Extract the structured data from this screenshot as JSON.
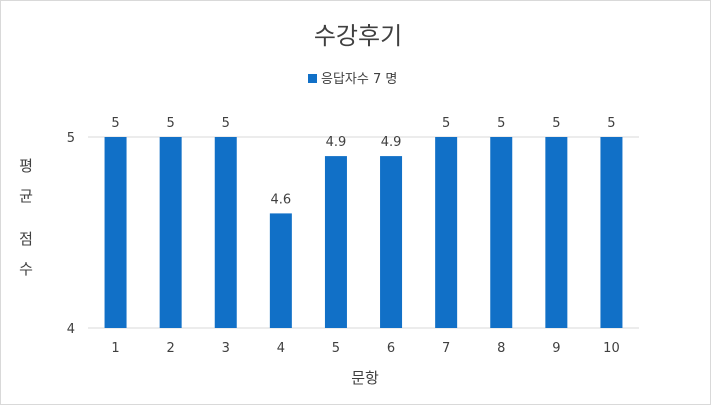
{
  "chart_data": {
    "type": "bar",
    "title": "수강후기",
    "legend": {
      "entries": [
        "응답자수 7 명"
      ],
      "position": "top"
    },
    "categories": [
      "1",
      "2",
      "3",
      "4",
      "5",
      "6",
      "7",
      "8",
      "9",
      "10"
    ],
    "series": [
      {
        "name": "응답자수 7 명",
        "values": [
          5,
          5,
          5,
          4.6,
          4.9,
          4.9,
          5,
          5,
          5,
          5
        ],
        "color": "#1170c7"
      }
    ],
    "data_labels": [
      "5",
      "5",
      "5",
      "4.6",
      "4.9",
      "4.9",
      "5",
      "5",
      "5",
      "5"
    ],
    "xlabel": "문항",
    "ylabel_chars": [
      "평",
      "균",
      "점",
      "수"
    ],
    "ylim": [
      4,
      5
    ],
    "y_ticks": [
      "4",
      "5"
    ],
    "grid": true
  }
}
